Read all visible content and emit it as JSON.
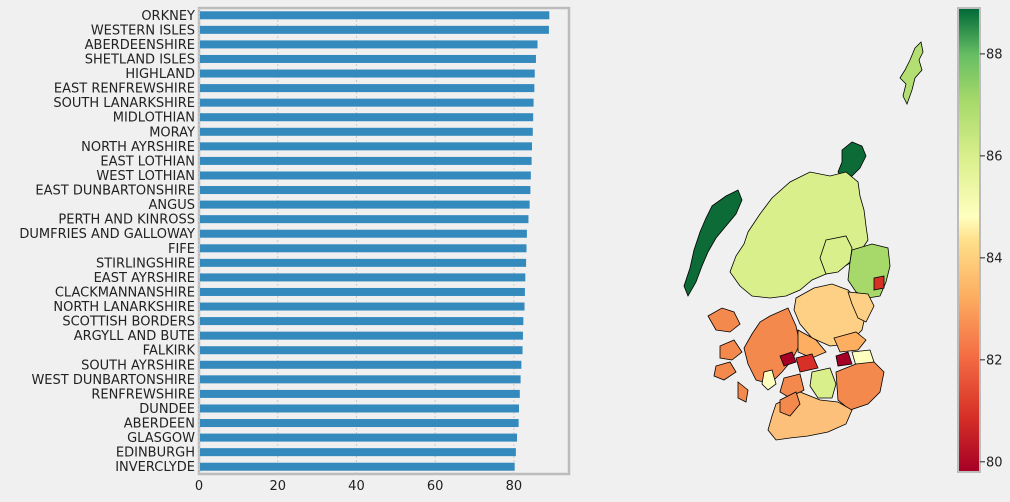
{
  "chart_data": {
    "type": "bar",
    "orientation": "horizontal",
    "categories": [
      "ORKNEY",
      "WESTERN ISLES",
      "ABERDEENSHIRE",
      "SHETLAND ISLES",
      "HIGHLAND",
      "EAST RENFREWSHIRE",
      "SOUTH LANARKSHIRE",
      "MIDLOTHIAN",
      "MORAY",
      "NORTH AYRSHIRE",
      "EAST LOTHIAN",
      "WEST LOTHIAN",
      "EAST DUNBARTONSHIRE",
      "ANGUS",
      "PERTH AND KINROSS",
      "DUMFRIES AND GALLOWAY",
      "FIFE",
      "STIRLINGSHIRE",
      "EAST AYRSHIRE",
      "CLACKMANNANSHIRE",
      "NORTH LANARKSHIRE",
      "SCOTTISH BORDERS",
      "ARGYLL AND BUTE",
      "FALKIRK",
      "SOUTH AYRSHIRE",
      "WEST DUNBARTONSHIRE",
      "RENFREWSHIRE",
      "DUNDEE",
      "ABERDEEN",
      "GLASGOW",
      "EDINBURGH",
      "INVERCLYDE"
    ],
    "values": [
      89.0,
      88.9,
      86.0,
      85.6,
      85.3,
      85.2,
      85.0,
      84.9,
      84.8,
      84.6,
      84.5,
      84.3,
      84.2,
      84.0,
      83.7,
      83.3,
      83.2,
      83.1,
      82.9,
      82.8,
      82.7,
      82.4,
      82.3,
      82.2,
      81.9,
      81.7,
      81.5,
      81.3,
      81.2,
      80.8,
      80.5,
      80.2
    ],
    "xlim": [
      0,
      94
    ],
    "xticks": [
      "0",
      "20",
      "40",
      "60",
      "80"
    ],
    "bar_color": "#348abd",
    "grid": true,
    "map": {
      "colormap": "RdYlGn",
      "colorbar_ticks": [
        "80",
        "82",
        "84",
        "86",
        "88"
      ],
      "colorbar_range": [
        79.8,
        88.9
      ]
    }
  }
}
